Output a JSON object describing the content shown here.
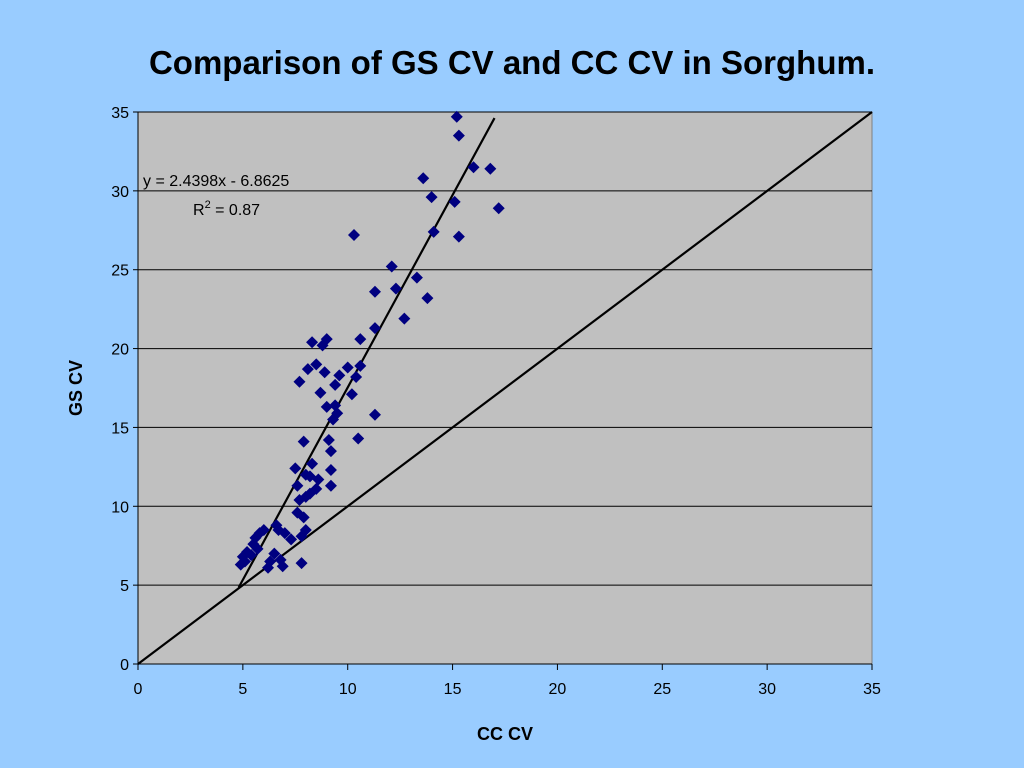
{
  "chart_data": {
    "type": "scatter",
    "title": "Comparison of GS CV and CC CV in Sorghum.",
    "xlabel": "CC CV",
    "ylabel": "GS CV",
    "xlim": [
      0,
      35
    ],
    "ylim": [
      0,
      35
    ],
    "x_ticks": [
      "0",
      "5",
      "10",
      "15",
      "20",
      "25",
      "30",
      "35"
    ],
    "y_ticks": [
      "0",
      "5",
      "10",
      "15",
      "20",
      "25",
      "30",
      "35"
    ],
    "grid": "horizontal",
    "legend": "none",
    "plot_background": "#c0c0c0",
    "page_background": "#99ccff",
    "marker": "diamond",
    "marker_color": "#000080",
    "line_color": "#000000",
    "trendline": {
      "equation": "y = 2.4398x - 6.8625",
      "r2_prefix": "R",
      "r2_sup": "2",
      "r2_value": " = 0.87",
      "slope": 2.4398,
      "intercept": -6.8625,
      "x_start": 4.8,
      "x_end": 17.0
    },
    "reference_line": {
      "x0": 0,
      "y0": 0,
      "x1": 35,
      "y1": 35
    },
    "points": [
      [
        4.9,
        6.3
      ],
      [
        5.0,
        6.8
      ],
      [
        5.1,
        6.5
      ],
      [
        5.2,
        7.1
      ],
      [
        5.4,
        6.9
      ],
      [
        5.5,
        7.6
      ],
      [
        5.6,
        8.0
      ],
      [
        5.7,
        7.3
      ],
      [
        5.8,
        8.3
      ],
      [
        6.0,
        8.5
      ],
      [
        6.2,
        6.1
      ],
      [
        6.3,
        6.5
      ],
      [
        6.5,
        7.0
      ],
      [
        6.6,
        8.8
      ],
      [
        6.7,
        8.5
      ],
      [
        6.8,
        6.6
      ],
      [
        6.9,
        6.2
      ],
      [
        7.0,
        8.3
      ],
      [
        7.3,
        7.9
      ],
      [
        7.5,
        12.4
      ],
      [
        7.6,
        11.3
      ],
      [
        7.6,
        9.6
      ],
      [
        7.7,
        17.9
      ],
      [
        7.7,
        10.4
      ],
      [
        7.8,
        6.4
      ],
      [
        7.8,
        8.1
      ],
      [
        7.9,
        9.3
      ],
      [
        7.9,
        14.1
      ],
      [
        8.0,
        10.6
      ],
      [
        8.0,
        12.0
      ],
      [
        8.0,
        8.5
      ],
      [
        8.1,
        18.7
      ],
      [
        8.2,
        11.9
      ],
      [
        8.2,
        10.8
      ],
      [
        8.3,
        12.7
      ],
      [
        8.3,
        20.4
      ],
      [
        8.5,
        19.0
      ],
      [
        8.5,
        11.1
      ],
      [
        8.6,
        11.7
      ],
      [
        8.7,
        17.2
      ],
      [
        8.8,
        20.2
      ],
      [
        8.9,
        18.5
      ],
      [
        9.0,
        16.3
      ],
      [
        9.0,
        20.6
      ],
      [
        9.1,
        14.2
      ],
      [
        9.2,
        13.5
      ],
      [
        9.2,
        11.3
      ],
      [
        9.2,
        12.3
      ],
      [
        9.3,
        15.5
      ],
      [
        9.4,
        16.4
      ],
      [
        9.4,
        17.7
      ],
      [
        9.5,
        15.9
      ],
      [
        9.6,
        18.3
      ],
      [
        10.0,
        18.8
      ],
      [
        10.2,
        17.1
      ],
      [
        10.3,
        27.2
      ],
      [
        10.4,
        18.2
      ],
      [
        10.5,
        14.3
      ],
      [
        10.6,
        18.9
      ],
      [
        10.6,
        20.6
      ],
      [
        11.3,
        21.3
      ],
      [
        11.3,
        23.6
      ],
      [
        11.3,
        15.8
      ],
      [
        12.1,
        25.2
      ],
      [
        12.3,
        23.8
      ],
      [
        12.7,
        21.9
      ],
      [
        13.3,
        24.5
      ],
      [
        13.6,
        30.8
      ],
      [
        13.8,
        23.2
      ],
      [
        14.0,
        29.6
      ],
      [
        14.1,
        27.4
      ],
      [
        15.1,
        29.3
      ],
      [
        15.2,
        34.7
      ],
      [
        15.3,
        33.5
      ],
      [
        15.3,
        27.1
      ],
      [
        16.0,
        31.5
      ],
      [
        16.8,
        31.4
      ],
      [
        17.2,
        28.9
      ]
    ]
  }
}
